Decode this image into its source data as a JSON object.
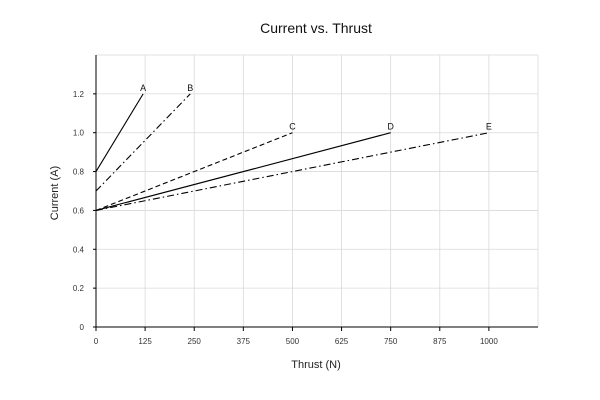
{
  "chart_data": {
    "type": "line",
    "title": "Current vs. Thrust",
    "xlabel": "Thrust (N)",
    "ylabel": "Current (A)",
    "xlim": [
      0,
      1125
    ],
    "ylim": [
      0,
      1.4
    ],
    "xticks": [
      0,
      125,
      250,
      375,
      500,
      625,
      750,
      875,
      1000
    ],
    "yticks": [
      0,
      0.2,
      0.4,
      0.6,
      0.8,
      1.0,
      1.2
    ],
    "xtick_labels": [
      "0",
      "125",
      "250",
      "375",
      "500",
      "625",
      "750",
      "875",
      "1000"
    ],
    "ytick_labels": [
      "0",
      "0.2",
      "0.4",
      "0.6",
      "0.8",
      "1.0",
      "1.2"
    ],
    "grid": true,
    "legend": "none",
    "series": [
      {
        "name": "A",
        "x": [
          0,
          120
        ],
        "y": [
          0.8,
          1.2
        ],
        "style": "solid"
      },
      {
        "name": "B",
        "x": [
          0,
          240
        ],
        "y": [
          0.7,
          1.2
        ],
        "style": "dashdot"
      },
      {
        "name": "C",
        "x": [
          0,
          500
        ],
        "y": [
          0.6,
          1.0
        ],
        "style": "dashed"
      },
      {
        "name": "D",
        "x": [
          0,
          750
        ],
        "y": [
          0.6,
          1.0
        ],
        "style": "solid"
      },
      {
        "name": "E",
        "x": [
          0,
          1000
        ],
        "y": [
          0.6,
          1.0
        ],
        "style": "dashdot"
      }
    ]
  }
}
